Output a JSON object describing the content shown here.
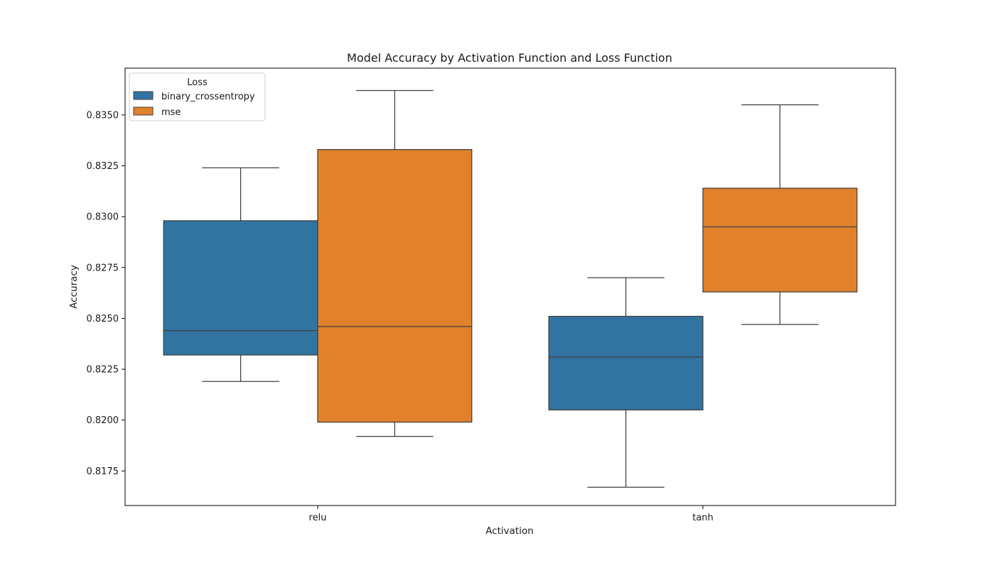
{
  "chart_data": {
    "type": "box",
    "title": "Model Accuracy by Activation Function and Loss Function",
    "xlabel": "Activation",
    "ylabel": "Accuracy",
    "categories": [
      "relu",
      "tanh"
    ],
    "ylim": [
      0.8158,
      0.8373
    ],
    "yticks": [
      0.8175,
      0.82,
      0.8225,
      0.825,
      0.8275,
      0.83,
      0.8325,
      0.835
    ],
    "ytick_labels": [
      "0.8175",
      "0.8200",
      "0.8225",
      "0.8250",
      "0.8275",
      "0.8300",
      "0.8325",
      "0.8350"
    ],
    "legend": {
      "title": "Loss",
      "position": "top-left"
    },
    "grid": false,
    "series": [
      {
        "name": "binary_crossentropy",
        "color": "#3274a1",
        "boxes": [
          {
            "category": "relu",
            "whisker_low": 0.8219,
            "q1": 0.8232,
            "median": 0.8244,
            "q3": 0.8298,
            "whisker_high": 0.8324
          },
          {
            "category": "tanh",
            "whisker_low": 0.8167,
            "q1": 0.8205,
            "median": 0.8231,
            "q3": 0.8251,
            "whisker_high": 0.827
          }
        ]
      },
      {
        "name": "mse",
        "color": "#e1812c",
        "boxes": [
          {
            "category": "relu",
            "whisker_low": 0.8192,
            "q1": 0.8199,
            "median": 0.8246,
            "q3": 0.8333,
            "whisker_high": 0.8362
          },
          {
            "category": "tanh",
            "whisker_low": 0.8247,
            "q1": 0.8263,
            "median": 0.8295,
            "q3": 0.8314,
            "whisker_high": 0.8355
          }
        ]
      }
    ]
  }
}
